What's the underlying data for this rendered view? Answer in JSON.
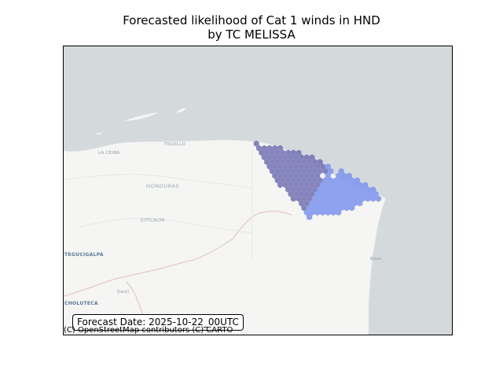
{
  "title": {
    "line1": "Forecasted likelihood of Cat 1 winds in HND",
    "line2": "by TC MELISSA"
  },
  "map": {
    "type": "hexbin-overlay",
    "region": "Honduras",
    "colors": {
      "sea": "#d4dadc",
      "land": "#f5f5f3",
      "hex_low": "#7b93ef",
      "hex_high": "#716fad",
      "border": "#e0b8b8"
    },
    "place_labels": [
      {
        "text": "LA CEIBA",
        "cls": "place"
      },
      {
        "text": "TRUJILLO",
        "cls": "place"
      },
      {
        "text": "HONDURAS",
        "cls": "place big"
      },
      {
        "text": "JUTICALPA",
        "cls": "place"
      },
      {
        "text": "TEGUCIGALPA",
        "cls": "place city"
      },
      {
        "text": "CHOLUTECA",
        "cls": "place city"
      },
      {
        "text": "Danli",
        "cls": "place"
      },
      {
        "text": "Bilwi",
        "cls": "place"
      }
    ]
  },
  "forecast_date_label": "Forecast Date: 2025-10-22_00UTC",
  "attribution": "(C) OpenStreetMap contributors (C) CARTO"
}
